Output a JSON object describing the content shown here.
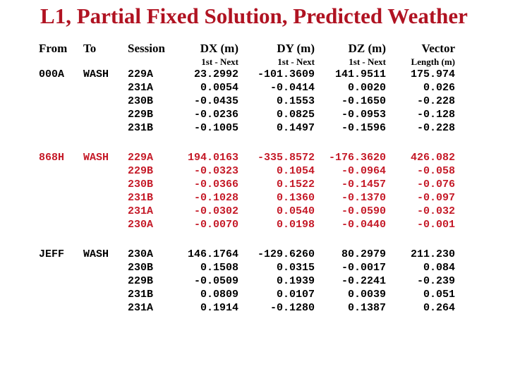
{
  "title": "L1, Partial Fixed Solution, Predicted Weather",
  "colors": {
    "title_red": "#b01322",
    "highlight_red": "#c51a28",
    "text_black": "#000000",
    "background": "#ffffff"
  },
  "table": {
    "headers": [
      {
        "label": "From",
        "sub": ""
      },
      {
        "label": "To",
        "sub": ""
      },
      {
        "label": "Session",
        "sub": ""
      },
      {
        "label": "DX (m)",
        "sub": "1st - Next"
      },
      {
        "label": "DY (m)",
        "sub": "1st - Next"
      },
      {
        "label": "DZ (m)",
        "sub": "1st - Next"
      },
      {
        "label": "Vector",
        "sub": "Length (m)"
      }
    ],
    "groups": [
      {
        "from": "000A",
        "to": "WASH",
        "color": "black",
        "rows": [
          {
            "session": "229A",
            "dx": "23.2992",
            "dy": "-101.3609",
            "dz": "141.9511",
            "vector": "175.974"
          },
          {
            "session": "231A",
            "dx": "0.0054",
            "dy": "-0.0414",
            "dz": "0.0020",
            "vector": "0.026"
          },
          {
            "session": "230B",
            "dx": "-0.0435",
            "dy": "0.1553",
            "dz": "-0.1650",
            "vector": "-0.228"
          },
          {
            "session": "229B",
            "dx": "-0.0236",
            "dy": "0.0825",
            "dz": "-0.0953",
            "vector": "-0.128"
          },
          {
            "session": "231B",
            "dx": "-0.1005",
            "dy": "0.1497",
            "dz": "-0.1596",
            "vector": "-0.228"
          }
        ]
      },
      {
        "from": "868H",
        "to": "WASH",
        "color": "red",
        "rows": [
          {
            "session": "229A",
            "dx": "194.0163",
            "dy": "-335.8572",
            "dz": "-176.3620",
            "vector": "426.082"
          },
          {
            "session": "229B",
            "dx": "-0.0323",
            "dy": "0.1054",
            "dz": "-0.0964",
            "vector": "-0.058"
          },
          {
            "session": "230B",
            "dx": "-0.0366",
            "dy": "0.1522",
            "dz": "-0.1457",
            "vector": "-0.076"
          },
          {
            "session": "231B",
            "dx": "-0.1028",
            "dy": "0.1360",
            "dz": "-0.1370",
            "vector": "-0.097"
          },
          {
            "session": "231A",
            "dx": "-0.0302",
            "dy": "0.0540",
            "dz": "-0.0590",
            "vector": "-0.032"
          },
          {
            "session": "230A",
            "dx": "-0.0070",
            "dy": "0.0198",
            "dz": "-0.0440",
            "vector": "-0.001"
          }
        ]
      },
      {
        "from": "JEFF",
        "to": "WASH",
        "color": "black",
        "rows": [
          {
            "session": "230A",
            "dx": "146.1764",
            "dy": "-129.6260",
            "dz": "80.2979",
            "vector": "211.230"
          },
          {
            "session": "230B",
            "dx": "0.1508",
            "dy": "0.0315",
            "dz": "-0.0017",
            "vector": "0.084"
          },
          {
            "session": "229B",
            "dx": "-0.0509",
            "dy": "0.1939",
            "dz": "-0.2241",
            "vector": "-0.239"
          },
          {
            "session": "231B",
            "dx": "0.0809",
            "dy": "0.0107",
            "dz": "0.0039",
            "vector": "0.051"
          },
          {
            "session": "231A",
            "dx": "0.1914",
            "dy": "-0.1280",
            "dz": "0.1387",
            "vector": "0.264"
          }
        ]
      }
    ]
  }
}
